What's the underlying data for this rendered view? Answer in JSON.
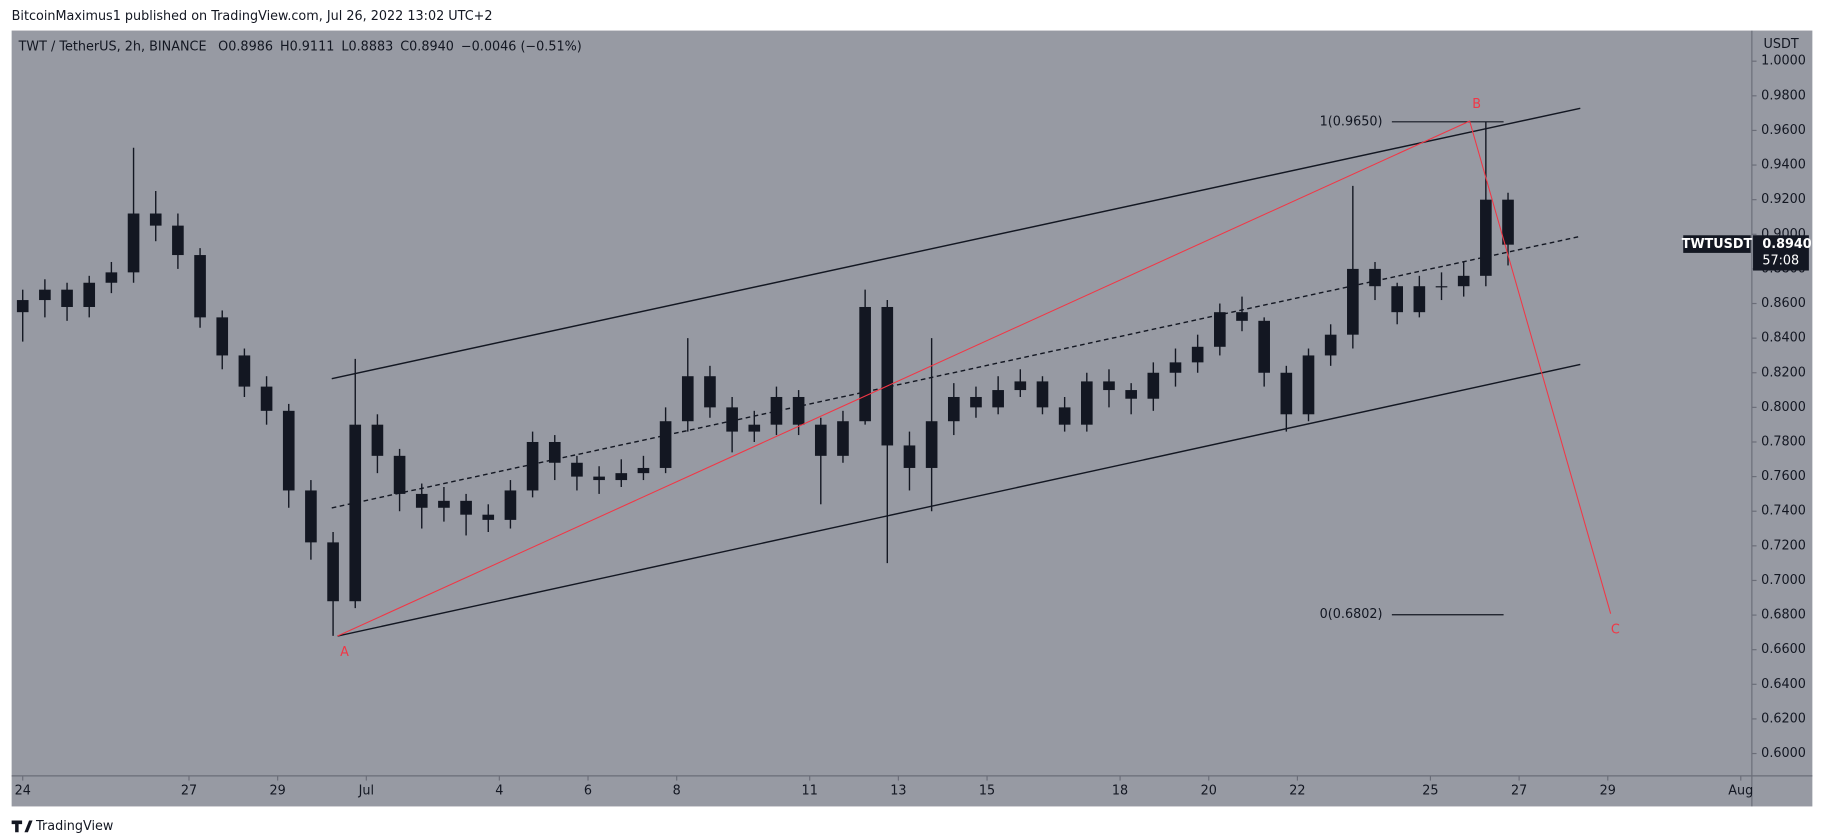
{
  "header": {
    "publisher": "BitcoinMaximus1 published on TradingView.com, Jul 26, 2022 13:02 UTC+2"
  },
  "footer": {
    "brand": "TradingView"
  },
  "chart_data": {
    "type": "candlestick",
    "legend": {
      "symbol": "TWT / TetherUS, 2h, BINANCE",
      "ohlc": [
        {
          "key": "O",
          "text": "0.8986"
        },
        {
          "key": "H",
          "text": "0.9111"
        },
        {
          "key": "L",
          "text": "0.8883"
        },
        {
          "key": "C",
          "text": "0.8940"
        }
      ],
      "change": "−0.0046 (−0.51%)"
    },
    "price_axis_unit": "USDT",
    "color": "#131722",
    "categories": [
      null,
      null,
      null,
      null,
      null,
      null,
      null,
      null,
      null,
      null,
      null,
      null,
      null,
      null,
      null,
      null,
      null,
      null,
      null,
      null,
      null,
      null,
      null,
      null,
      null,
      null,
      null,
      null,
      null,
      null,
      null,
      null,
      null,
      null,
      null,
      null,
      null,
      null,
      null,
      null,
      null,
      null,
      null,
      null,
      null,
      null,
      null,
      null,
      null,
      null,
      null,
      null,
      null,
      null,
      null,
      null,
      null,
      null,
      null,
      null,
      null,
      null,
      null,
      null,
      null,
      null,
      null,
      null
    ],
    "open": [
      0.855,
      0.862,
      0.868,
      0.858,
      0.872,
      0.878,
      0.912,
      0.905,
      0.888,
      0.852,
      0.83,
      0.812,
      0.798,
      0.752,
      0.722,
      0.688,
      0.79,
      0.772,
      0.75,
      0.742,
      0.746,
      0.738,
      0.735,
      0.752,
      0.78,
      0.768,
      0.76,
      0.758,
      0.762,
      0.765,
      0.792,
      0.818,
      0.8,
      0.786,
      0.79,
      0.806,
      0.79,
      0.772,
      0.792,
      0.858,
      0.778,
      0.765,
      0.792,
      0.806,
      0.8,
      0.81,
      0.815,
      0.8,
      0.79,
      0.815,
      0.81,
      0.805,
      0.82,
      0.826,
      0.835,
      0.855,
      0.85,
      0.82,
      0.796,
      0.83,
      0.842,
      0.88,
      0.87,
      0.855,
      0.87,
      0.87,
      0.876,
      0.92
    ],
    "high": [
      0.868,
      0.874,
      0.872,
      0.876,
      0.884,
      0.95,
      0.925,
      0.912,
      0.892,
      0.856,
      0.834,
      0.818,
      0.802,
      0.758,
      0.728,
      0.828,
      0.796,
      0.776,
      0.756,
      0.754,
      0.75,
      0.744,
      0.758,
      0.786,
      0.784,
      0.772,
      0.766,
      0.77,
      0.772,
      0.8,
      0.84,
      0.824,
      0.806,
      0.798,
      0.812,
      0.81,
      0.794,
      0.798,
      0.868,
      0.862,
      0.786,
      0.84,
      0.814,
      0.812,
      0.818,
      0.822,
      0.818,
      0.806,
      0.82,
      0.822,
      0.814,
      0.826,
      0.834,
      0.842,
      0.86,
      0.864,
      0.852,
      0.824,
      0.834,
      0.848,
      0.928,
      0.884,
      0.872,
      0.876,
      0.878,
      0.884,
      0.965,
      0.924
    ],
    "low": [
      0.838,
      0.852,
      0.85,
      0.852,
      0.866,
      0.872,
      0.896,
      0.88,
      0.846,
      0.822,
      0.806,
      0.79,
      0.742,
      0.712,
      0.668,
      0.684,
      0.762,
      0.74,
      0.73,
      0.734,
      0.726,
      0.728,
      0.73,
      0.748,
      0.758,
      0.752,
      0.75,
      0.754,
      0.758,
      0.762,
      0.786,
      0.794,
      0.774,
      0.78,
      0.784,
      0.784,
      0.744,
      0.768,
      0.79,
      0.71,
      0.752,
      0.74,
      0.784,
      0.794,
      0.796,
      0.806,
      0.796,
      0.786,
      0.786,
      0.8,
      0.796,
      0.798,
      0.812,
      0.82,
      0.83,
      0.844,
      0.812,
      0.786,
      0.792,
      0.824,
      0.834,
      0.862,
      0.848,
      0.852,
      0.862,
      0.864,
      0.87,
      0.882
    ],
    "close": [
      0.862,
      0.868,
      0.858,
      0.872,
      0.878,
      0.912,
      0.905,
      0.888,
      0.852,
      0.83,
      0.812,
      0.798,
      0.752,
      0.722,
      0.688,
      0.79,
      0.772,
      0.75,
      0.742,
      0.746,
      0.738,
      0.735,
      0.752,
      0.78,
      0.768,
      0.76,
      0.758,
      0.762,
      0.765,
      0.792,
      0.818,
      0.8,
      0.786,
      0.79,
      0.806,
      0.79,
      0.772,
      0.792,
      0.858,
      0.778,
      0.765,
      0.792,
      0.806,
      0.8,
      0.81,
      0.815,
      0.8,
      0.79,
      0.815,
      0.81,
      0.805,
      0.82,
      0.826,
      0.835,
      0.855,
      0.85,
      0.82,
      0.796,
      0.83,
      0.842,
      0.88,
      0.87,
      0.855,
      0.87,
      0.87,
      0.876,
      0.92,
      0.894
    ],
    "xlim": [
      0,
      78.5
    ],
    "xticks": [
      {
        "value": 0.5,
        "label": "24"
      },
      {
        "value": 8,
        "label": "27"
      },
      {
        "value": 12,
        "label": "29"
      },
      {
        "value": 16,
        "label": "Jul"
      },
      {
        "value": 22,
        "label": "4"
      },
      {
        "value": 26,
        "label": "6"
      },
      {
        "value": 30,
        "label": "8"
      },
      {
        "value": 36,
        "label": "11"
      },
      {
        "value": 40,
        "label": "13"
      },
      {
        "value": 44,
        "label": "15"
      },
      {
        "value": 50,
        "label": "18"
      },
      {
        "value": 54,
        "label": "20"
      },
      {
        "value": 58,
        "label": "22"
      },
      {
        "value": 64,
        "label": "25"
      },
      {
        "value": 68,
        "label": "27"
      },
      {
        "value": 72,
        "label": "29"
      },
      {
        "value": 78,
        "label": "Aug"
      }
    ],
    "ylim": [
      0.5871,
      1.0177
    ],
    "yticks": [
      {
        "value": 1.0,
        "label": "1.0000"
      },
      {
        "value": 0.98,
        "label": "0.9800"
      },
      {
        "value": 0.96,
        "label": "0.9600"
      },
      {
        "value": 0.94,
        "label": "0.9400"
      },
      {
        "value": 0.92,
        "label": "0.9200"
      },
      {
        "value": 0.9,
        "label": "0.9000"
      },
      {
        "value": 0.88,
        "label": "0.8800"
      },
      {
        "value": 0.86,
        "label": "0.8600"
      },
      {
        "value": 0.84,
        "label": "0.8400"
      },
      {
        "value": 0.82,
        "label": "0.8200"
      },
      {
        "value": 0.8,
        "label": "0.8000"
      },
      {
        "value": 0.78,
        "label": "0.7800"
      },
      {
        "value": 0.76,
        "label": "0.7600"
      },
      {
        "value": 0.74,
        "label": "0.7400"
      },
      {
        "value": 0.72,
        "label": "0.7200"
      },
      {
        "value": 0.7,
        "label": "0.7000"
      },
      {
        "value": 0.68,
        "label": "0.6800"
      },
      {
        "value": 0.66,
        "label": "0.6600"
      },
      {
        "value": 0.64,
        "label": "0.6400"
      },
      {
        "value": 0.62,
        "label": "0.6200"
      },
      {
        "value": 0.6,
        "label": "0.6000"
      }
    ],
    "grid": false,
    "last_price": {
      "symbol": "TWTUSDT",
      "price": {
        "value": 0.894,
        "label": "0.8940"
      },
      "countdown": "57:08"
    },
    "channel": [
      {
        "x": [
          14.44,
          70.76
        ],
        "y": [
          0.8166,
          0.9728
        ],
        "dashed": false
      },
      {
        "x": [
          14.44,
          70.76
        ],
        "y": [
          0.7419,
          0.8988
        ],
        "dashed": true
      },
      {
        "x": [
          14.7,
          70.76
        ],
        "y": [
          0.6679,
          0.8248
        ],
        "dashed": false
      }
    ],
    "wave": {
      "x": [
        14.7,
        65.77,
        72.13
      ],
      "y": [
        0.6679,
        0.9654,
        0.6808
      ],
      "labels": [
        "A",
        "B",
        "C"
      ],
      "color": "#f23645"
    },
    "fib": {
      "x": [
        62.26,
        67.3
      ],
      "levels": [
        {
          "label": "1(0.9650)",
          "value": 0.965
        },
        {
          "label": "0(0.6802)",
          "value": 0.6802
        }
      ]
    }
  }
}
